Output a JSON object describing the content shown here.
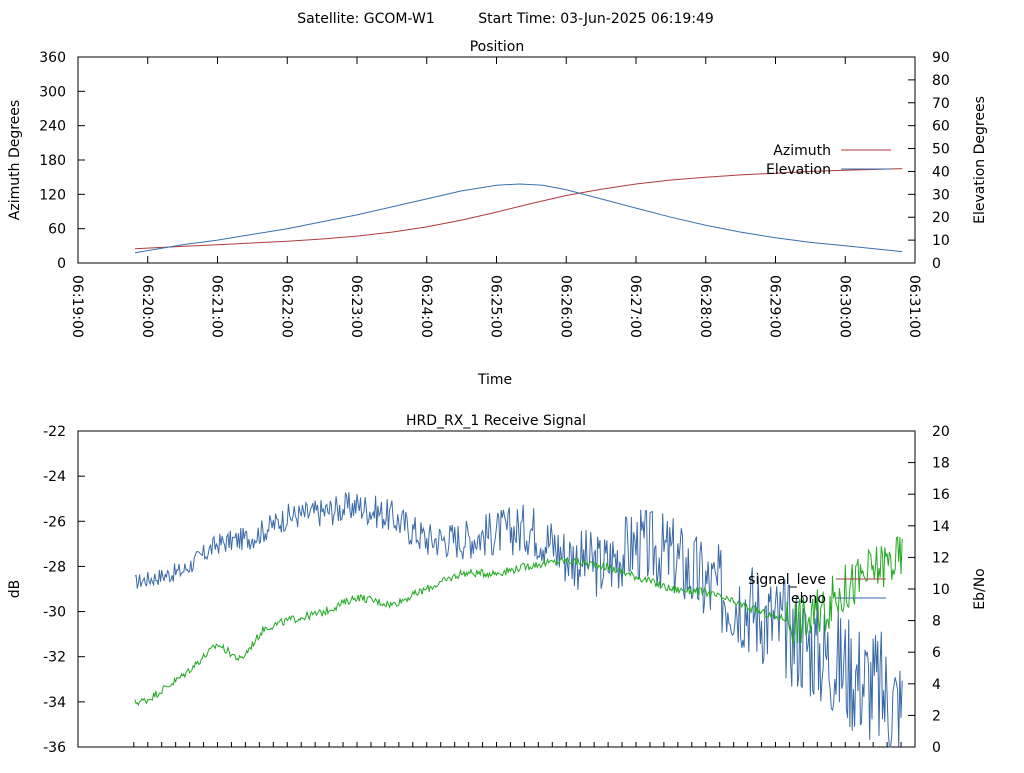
{
  "header": {
    "satellite": "Satellite: GCOM-W1",
    "start_time": "Start Time: 03-Jun-2025 06:19:49"
  },
  "colors": {
    "azimuth": "#b03a3a",
    "elevation": "#3a6fb0",
    "signal_level": "#b03a3a",
    "ebno": "#22aa22",
    "signal_blue": "#3a6aa8"
  },
  "chart_data": [
    {
      "type": "line",
      "title": "Position",
      "xlabel": "Time",
      "ylabel": "Azimuth Degrees",
      "y2label": "Elevation Degrees",
      "xlim": [
        "06:19:00",
        "06:31:00"
      ],
      "x_ticks": [
        "06:19:00",
        "06:20:00",
        "06:21:00",
        "06:22:00",
        "06:23:00",
        "06:24:00",
        "06:25:00",
        "06:26:00",
        "06:27:00",
        "06:28:00",
        "06:29:00",
        "06:30:00",
        "06:31:00"
      ],
      "ylim": [
        0,
        360
      ],
      "y_ticks": [
        0,
        60,
        120,
        180,
        240,
        300,
        360
      ],
      "y2lim": [
        0,
        90
      ],
      "y2_ticks": [
        0,
        10,
        20,
        30,
        40,
        50,
        60,
        70,
        80,
        90
      ],
      "legend_position": "right",
      "series": [
        {
          "name": "Azimuth",
          "axis": "y",
          "x": [
            "06:19:49",
            "06:20:30",
            "06:21:00",
            "06:21:30",
            "06:22:00",
            "06:22:30",
            "06:23:00",
            "06:23:30",
            "06:24:00",
            "06:24:30",
            "06:25:00",
            "06:25:30",
            "06:26:00",
            "06:26:30",
            "06:27:00",
            "06:27:30",
            "06:28:00",
            "06:28:30",
            "06:29:00",
            "06:29:30",
            "06:30:00",
            "06:30:49"
          ],
          "values": [
            25,
            29,
            32,
            35,
            38,
            42,
            47,
            54,
            63,
            75,
            89,
            104,
            118,
            129,
            138,
            145,
            150,
            154,
            157,
            160,
            162,
            165
          ]
        },
        {
          "name": "Elevation",
          "axis": "y2",
          "x": [
            "06:19:49",
            "06:20:30",
            "06:21:00",
            "06:21:30",
            "06:22:00",
            "06:22:30",
            "06:23:00",
            "06:23:30",
            "06:24:00",
            "06:24:30",
            "06:25:00",
            "06:25:20",
            "06:25:40",
            "06:26:00",
            "06:26:30",
            "06:27:00",
            "06:27:30",
            "06:28:00",
            "06:28:30",
            "06:29:00",
            "06:29:30",
            "06:30:00",
            "06:30:49"
          ],
          "values": [
            4.5,
            8,
            10,
            12.5,
            15,
            18,
            21,
            24.5,
            28,
            31.5,
            34,
            34.5,
            34,
            32,
            28,
            24,
            20,
            16.5,
            13.5,
            11,
            9,
            7.5,
            5
          ]
        }
      ]
    },
    {
      "type": "line",
      "title": "HRD_RX_1 Receive Signal",
      "ylabel": "dB",
      "y2label": "Eb/No",
      "xlim": [
        "06:19:00",
        "06:31:00"
      ],
      "ylim": [
        -36,
        -22
      ],
      "y_ticks": [
        -36,
        -34,
        -32,
        -30,
        -28,
        -26,
        -24,
        -22
      ],
      "y2lim": [
        0,
        20
      ],
      "y2_ticks": [
        0,
        2,
        4,
        6,
        8,
        10,
        12,
        14,
        16,
        18,
        20
      ],
      "legend_position": "right",
      "series": [
        {
          "name": "signal_leve",
          "axis": "y",
          "x": [
            "06:19:49",
            "06:20:30",
            "06:21:00",
            "06:21:30",
            "06:22:00",
            "06:22:30",
            "06:23:00",
            "06:23:30",
            "06:24:00",
            "06:24:30",
            "06:25:00",
            "06:25:30",
            "06:26:00",
            "06:26:30",
            "06:27:00",
            "06:27:30",
            "06:28:00",
            "06:28:30",
            "06:29:00",
            "06:29:30",
            "06:30:00",
            "06:30:30",
            "06:30:49"
          ],
          "values": [
            -28.7,
            -28.2,
            -27.0,
            -26.7,
            -25.8,
            -25.6,
            -25.3,
            -25.8,
            -26.8,
            -26.8,
            -26.5,
            -26.3,
            -27.5,
            -28.0,
            -27.0,
            -27.5,
            -28.8,
            -29.5,
            -30.5,
            -31.5,
            -32.5,
            -33.5,
            -34.5
          ]
        },
        {
          "name": "ebno",
          "axis": "y2",
          "x": [
            "06:19:49",
            "06:20:00",
            "06:20:30",
            "06:21:00",
            "06:21:20",
            "06:21:40",
            "06:22:00",
            "06:22:30",
            "06:23:00",
            "06:23:30",
            "06:24:00",
            "06:24:30",
            "06:25:00",
            "06:25:30",
            "06:26:00",
            "06:26:30",
            "06:27:00",
            "06:27:30",
            "06:28:00",
            "06:28:30",
            "06:29:00",
            "06:29:30",
            "06:30:00",
            "06:30:30",
            "06:30:49"
          ],
          "values": [
            2.8,
            3.0,
            4.5,
            6.5,
            5.5,
            7.5,
            8.0,
            8.5,
            9.5,
            9.0,
            10.0,
            11.0,
            11.0,
            11.5,
            11.8,
            11.5,
            10.8,
            10.0,
            9.8,
            9.0,
            8.2,
            8.0,
            10.0,
            11.5,
            12.0
          ]
        }
      ]
    }
  ]
}
